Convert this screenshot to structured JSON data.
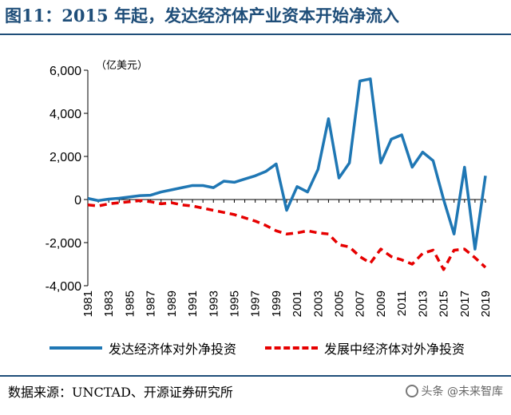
{
  "header": {
    "title": "图11：2015 年起，发达经济体产业资本开始净流入"
  },
  "footer": {
    "source": "数据来源：UNCTAD、开源证券研究所",
    "watermark": "头条 @未来智库"
  },
  "chart_data": {
    "type": "line",
    "unit_label": "（亿美元）",
    "x": [
      1981,
      1982,
      1983,
      1984,
      1985,
      1986,
      1987,
      1988,
      1989,
      1990,
      1991,
      1992,
      1993,
      1994,
      1995,
      1996,
      1997,
      1998,
      1999,
      2000,
      2001,
      2002,
      2003,
      2004,
      2005,
      2006,
      2007,
      2008,
      2009,
      2010,
      2011,
      2012,
      2013,
      2014,
      2015,
      2016,
      2017,
      2018,
      2019
    ],
    "x_tick_labels": [
      "1981",
      "1983",
      "1985",
      "1987",
      "1989",
      "1991",
      "1993",
      "1995",
      "1997",
      "1999",
      "2001",
      "2003",
      "2005",
      "2007",
      "2009",
      "2011",
      "2013",
      "2015",
      "2017",
      "2019"
    ],
    "ylim": [
      -4000,
      6000
    ],
    "y_ticks": [
      -4000,
      -2000,
      0,
      2000,
      4000,
      6000
    ],
    "y_tick_labels": [
      "-4,000",
      "-2,000",
      "0",
      "2,000",
      "4,000",
      "6,000"
    ],
    "grid": false,
    "legend_position": "bottom",
    "series": [
      {
        "name": "发达经济体对外净投资",
        "color": "#1f77b4",
        "style": "solid",
        "values": [
          50,
          -50,
          20,
          60,
          120,
          180,
          200,
          350,
          450,
          550,
          650,
          650,
          550,
          850,
          800,
          950,
          1100,
          1300,
          1650,
          -500,
          600,
          350,
          1400,
          3750,
          1000,
          1700,
          5500,
          5600,
          1700,
          2800,
          3000,
          1500,
          2200,
          1800,
          0,
          -1600,
          1500,
          -2300,
          1100
        ]
      },
      {
        "name": "发展中经济体对外净投资",
        "color": "#e60000",
        "style": "dashed",
        "values": [
          -250,
          -300,
          -200,
          -150,
          -100,
          -50,
          -100,
          -200,
          -150,
          -250,
          -300,
          -400,
          -500,
          -600,
          -700,
          -850,
          -1000,
          -1200,
          -1450,
          -1600,
          -1550,
          -1450,
          -1550,
          -1600,
          -2100,
          -2200,
          -2650,
          -2950,
          -2300,
          -2650,
          -2800,
          -3000,
          -2500,
          -2350,
          -3250,
          -2350,
          -2300,
          -2700,
          -3150
        ]
      }
    ]
  }
}
